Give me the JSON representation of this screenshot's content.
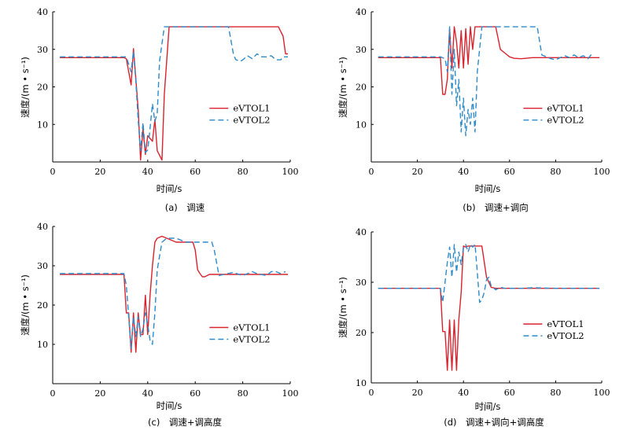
{
  "colors": {
    "series1": "#d8232e",
    "series2": "#2e8bc9",
    "axis": "#000000"
  },
  "chart_data": [
    {
      "type": "line",
      "caption": "(a)　调速",
      "xlabel": "时间/s",
      "ylabel": "速度/(m • s⁻¹)",
      "xlim": [
        0,
        100
      ],
      "ylim": [
        0,
        40
      ],
      "xticks": [
        0,
        20,
        40,
        60,
        80,
        100
      ],
      "yticks": [
        10,
        20,
        30,
        40
      ],
      "grid": false,
      "legend_position": "center-right",
      "series": [
        {
          "name": "eVTOL1",
          "style": "solid",
          "x": [
            3,
            30,
            31,
            33,
            34,
            36,
            37,
            38,
            39,
            40,
            42,
            43,
            44,
            46,
            47,
            49,
            60,
            80,
            95,
            97,
            98,
            99
          ],
          "y": [
            27.8,
            27.8,
            27.5,
            20.5,
            30.2,
            14,
            0.5,
            8.8,
            2,
            7,
            5.5,
            11.3,
            3,
            0.5,
            18,
            36,
            36,
            36,
            36,
            33.5,
            28.8,
            28.8
          ]
        },
        {
          "name": "eVTOL2",
          "style": "dashed",
          "x": [
            3,
            31,
            33,
            34,
            35,
            36,
            37,
            38,
            39,
            40,
            41,
            42,
            43,
            44,
            45,
            47,
            60,
            74,
            76,
            77,
            78,
            79,
            80,
            82,
            84,
            86,
            88,
            90,
            92,
            94,
            96,
            97,
            99
          ],
          "y": [
            28,
            28,
            24,
            29.5,
            21.5,
            11,
            3,
            10.5,
            2.5,
            3.2,
            9,
            15.5,
            10.8,
            13,
            27,
            36,
            36,
            36,
            29,
            27.3,
            27,
            26.8,
            27.2,
            28.3,
            27.5,
            28.8,
            28,
            28,
            28.3,
            27.2,
            27.2,
            28,
            28
          ]
        }
      ]
    },
    {
      "type": "line",
      "caption": "(b)　调速+调向",
      "xlabel": "时间/s",
      "ylabel": "速度/(m • s⁻¹)",
      "xlim": [
        0,
        100
      ],
      "ylim": [
        0,
        40
      ],
      "xticks": [
        0,
        20,
        40,
        60,
        80,
        100
      ],
      "yticks": [
        10,
        20,
        30,
        40
      ],
      "grid": false,
      "legend_position": "center-right",
      "series": [
        {
          "name": "eVTOL1",
          "style": "solid",
          "x": [
            3,
            30,
            31,
            32,
            33,
            34,
            35,
            36,
            37,
            38,
            39,
            40,
            41,
            42,
            43,
            44,
            45,
            50,
            52,
            54,
            56,
            58,
            60,
            62,
            65,
            70,
            80,
            90,
            99
          ],
          "y": [
            27.8,
            27.8,
            18,
            18,
            22,
            35.5,
            25,
            36,
            32,
            25,
            35,
            25,
            35.5,
            26,
            36,
            30,
            36,
            36,
            36,
            36,
            30,
            29,
            28,
            27.6,
            27.5,
            27.8,
            27.8,
            27.8,
            27.8
          ]
        },
        {
          "name": "eVTOL2",
          "style": "dashed",
          "x": [
            3,
            30,
            32,
            33,
            34,
            35,
            36,
            37,
            38,
            39,
            40,
            41,
            42,
            43,
            44,
            45,
            46,
            48,
            55,
            60,
            72,
            74,
            76,
            78,
            80,
            82,
            84,
            86,
            88,
            90,
            92,
            94,
            96
          ],
          "y": [
            28,
            28,
            27.5,
            24,
            36,
            18,
            30,
            15,
            22,
            8,
            17,
            7,
            14,
            10,
            17,
            8,
            24,
            36,
            36,
            36,
            36,
            28.5,
            28,
            27.5,
            27.2,
            27.8,
            28.3,
            27.8,
            28.5,
            27.8,
            28.3,
            27.5,
            29
          ]
        }
      ]
    },
    {
      "type": "line",
      "caption": "(c)　调速+调高度",
      "xlabel": "时间/s",
      "ylabel": "速度/(m • s⁻¹)",
      "xlim": [
        0,
        100
      ],
      "ylim": [
        0,
        40
      ],
      "xticks": [
        0,
        20,
        40,
        60,
        80,
        100
      ],
      "yticks": [
        10,
        20,
        30,
        40
      ],
      "grid": false,
      "legend_position": "center-right",
      "series": [
        {
          "name": "eVTOL1",
          "style": "solid",
          "x": [
            3,
            30,
            31,
            32,
            33,
            34,
            35,
            36,
            37,
            38,
            39,
            40,
            41,
            42,
            43,
            44,
            46,
            48,
            52,
            56,
            59,
            60,
            61,
            62,
            63,
            64,
            66,
            70,
            80,
            99
          ],
          "y": [
            27.8,
            27.8,
            18,
            18,
            8,
            18,
            8,
            18,
            12.5,
            12.5,
            22.5,
            12.5,
            22.5,
            30,
            36,
            37,
            37.5,
            37,
            36,
            36,
            36,
            34,
            29,
            28,
            27.2,
            27.2,
            27.8,
            27.8,
            27.8,
            27.8
          ]
        },
        {
          "name": "eVTOL2",
          "style": "dashed",
          "x": [
            3,
            30,
            31,
            32,
            33,
            34,
            35,
            36,
            37,
            38,
            39,
            40,
            41,
            42,
            43,
            44,
            46,
            48,
            52,
            56,
            60,
            64,
            67,
            68,
            70,
            72,
            76,
            80,
            84,
            86,
            90,
            92,
            94,
            96,
            98
          ],
          "y": [
            28,
            28,
            25,
            17,
            9,
            17,
            12,
            17,
            12,
            14,
            18,
            15,
            11,
            10,
            18,
            29,
            36,
            37,
            37,
            36,
            36,
            36,
            36,
            34,
            27.5,
            27.8,
            28.3,
            27.5,
            28.5,
            28,
            27.5,
            28.5,
            28.5,
            28,
            28.5
          ]
        }
      ]
    },
    {
      "type": "line",
      "caption": "(d)　调速+调向+调高度",
      "xlabel": "时间/s",
      "ylabel": "速度/(m • s⁻¹)",
      "xlim": [
        0,
        100
      ],
      "ylim": [
        10,
        40
      ],
      "xticks": [
        0,
        20,
        40,
        60,
        80,
        100
      ],
      "yticks": [
        10,
        20,
        30,
        40
      ],
      "grid": false,
      "legend_position": "bottom-right",
      "series": [
        {
          "name": "eVTOL1",
          "style": "solid",
          "x": [
            3,
            30,
            31,
            32,
            33,
            34,
            35,
            36,
            37,
            38,
            39,
            40,
            41,
            42,
            48,
            50,
            52,
            54,
            56,
            60,
            80,
            99
          ],
          "y": [
            28.8,
            28.8,
            20.2,
            20.2,
            12.5,
            22.5,
            12.5,
            22.5,
            12.5,
            22.5,
            28,
            37.2,
            37,
            37.2,
            37.2,
            31,
            29,
            28.8,
            28.8,
            28.8,
            28.8,
            28.8
          ]
        },
        {
          "name": "eVTOL2",
          "style": "dashed",
          "x": [
            3,
            30,
            31,
            32,
            33,
            34,
            35,
            36,
            37,
            38,
            39,
            40,
            41,
            42,
            43,
            44,
            45,
            46,
            47,
            48,
            49,
            50,
            51,
            52,
            54,
            56,
            58,
            60,
            65,
            70,
            80,
            90,
            99
          ],
          "y": [
            28.8,
            28.8,
            26,
            30,
            34,
            37,
            31,
            37.5,
            32,
            36,
            33.5,
            37,
            37.5,
            36,
            37.5,
            37,
            37.5,
            32,
            26,
            26.5,
            28,
            30.5,
            31,
            29.3,
            28.5,
            29,
            28.8,
            28.8,
            28.8,
            28.9,
            28.8,
            28.8,
            28.8
          ]
        }
      ]
    }
  ]
}
